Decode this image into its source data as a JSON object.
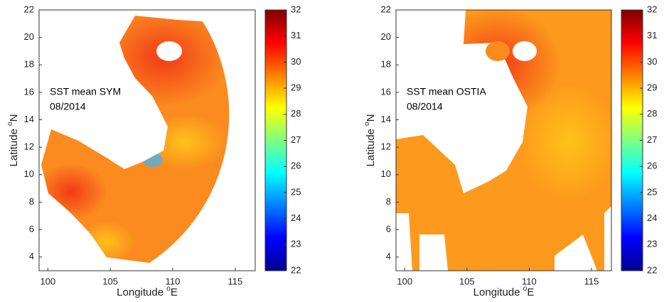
{
  "chart_data": [
    {
      "type": "heatmap",
      "annotation": [
        "SST mean SYM",
        "08/2014"
      ],
      "xlabel": [
        "Longitude ",
        "o",
        "E"
      ],
      "ylabel": [
        "Latitude ",
        "o",
        "N"
      ],
      "xlim": [
        99.3,
        116.6
      ],
      "ylim": [
        3,
        22
      ],
      "xticks": [
        100,
        105,
        110,
        115
      ],
      "yticks": [
        4,
        6,
        8,
        10,
        12,
        14,
        16,
        18,
        20,
        22
      ],
      "colorbar": {
        "lim": [
          22,
          32
        ],
        "ticks": [
          22,
          23,
          24,
          25,
          26,
          27,
          28,
          29,
          30,
          31,
          32
        ],
        "colormap": "jet"
      }
    },
    {
      "type": "heatmap",
      "annotation": [
        "SST mean OSTIA",
        "08/2014"
      ],
      "xlabel": [
        "Longitude ",
        "o",
        "E"
      ],
      "ylabel": [
        "Latitude ",
        "o",
        "N"
      ],
      "xlim": [
        99.3,
        116.6
      ],
      "ylim": [
        3,
        22
      ],
      "xticks": [
        100,
        105,
        110,
        115
      ],
      "yticks": [
        4,
        6,
        8,
        10,
        12,
        14,
        16,
        18,
        20,
        22
      ],
      "colorbar": {
        "lim": [
          22,
          32
        ],
        "ticks": [
          22,
          23,
          24,
          25,
          26,
          27,
          28,
          29,
          30,
          31,
          32
        ],
        "colormap": "jet"
      }
    }
  ]
}
